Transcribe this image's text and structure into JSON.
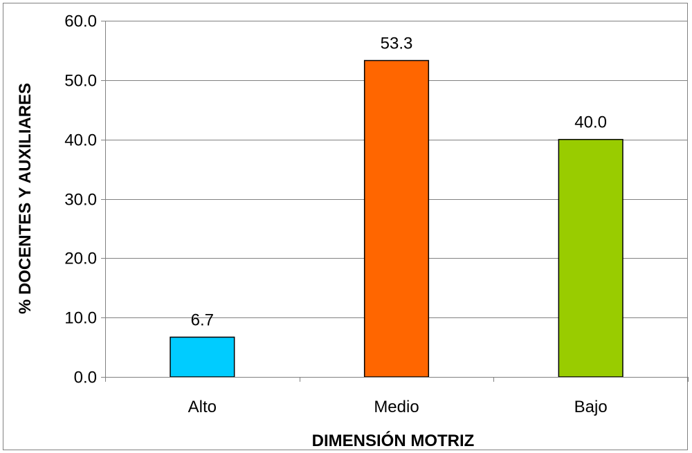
{
  "chart_data": {
    "type": "bar",
    "title": "",
    "xlabel": "DIMENSIÓN MOTRIZ",
    "ylabel": "% DOCENTES Y AUXILIARES",
    "categories": [
      "Alto",
      "Medio",
      "Bajo"
    ],
    "values": [
      6.7,
      53.3,
      40.0
    ],
    "data_labels": [
      "6.7",
      "53.3",
      "40.0"
    ],
    "bar_colors": [
      "#00ccff",
      "#ff6600",
      "#99cc00"
    ],
    "ylim": [
      0,
      60
    ],
    "yticks": [
      0,
      10,
      20,
      30,
      40,
      50,
      60
    ],
    "ytick_labels": [
      "0.0",
      "10.0",
      "20.0",
      "30.0",
      "40.0",
      "50.0",
      "60.0"
    ],
    "grid": "horizontal",
    "legend": "none"
  }
}
